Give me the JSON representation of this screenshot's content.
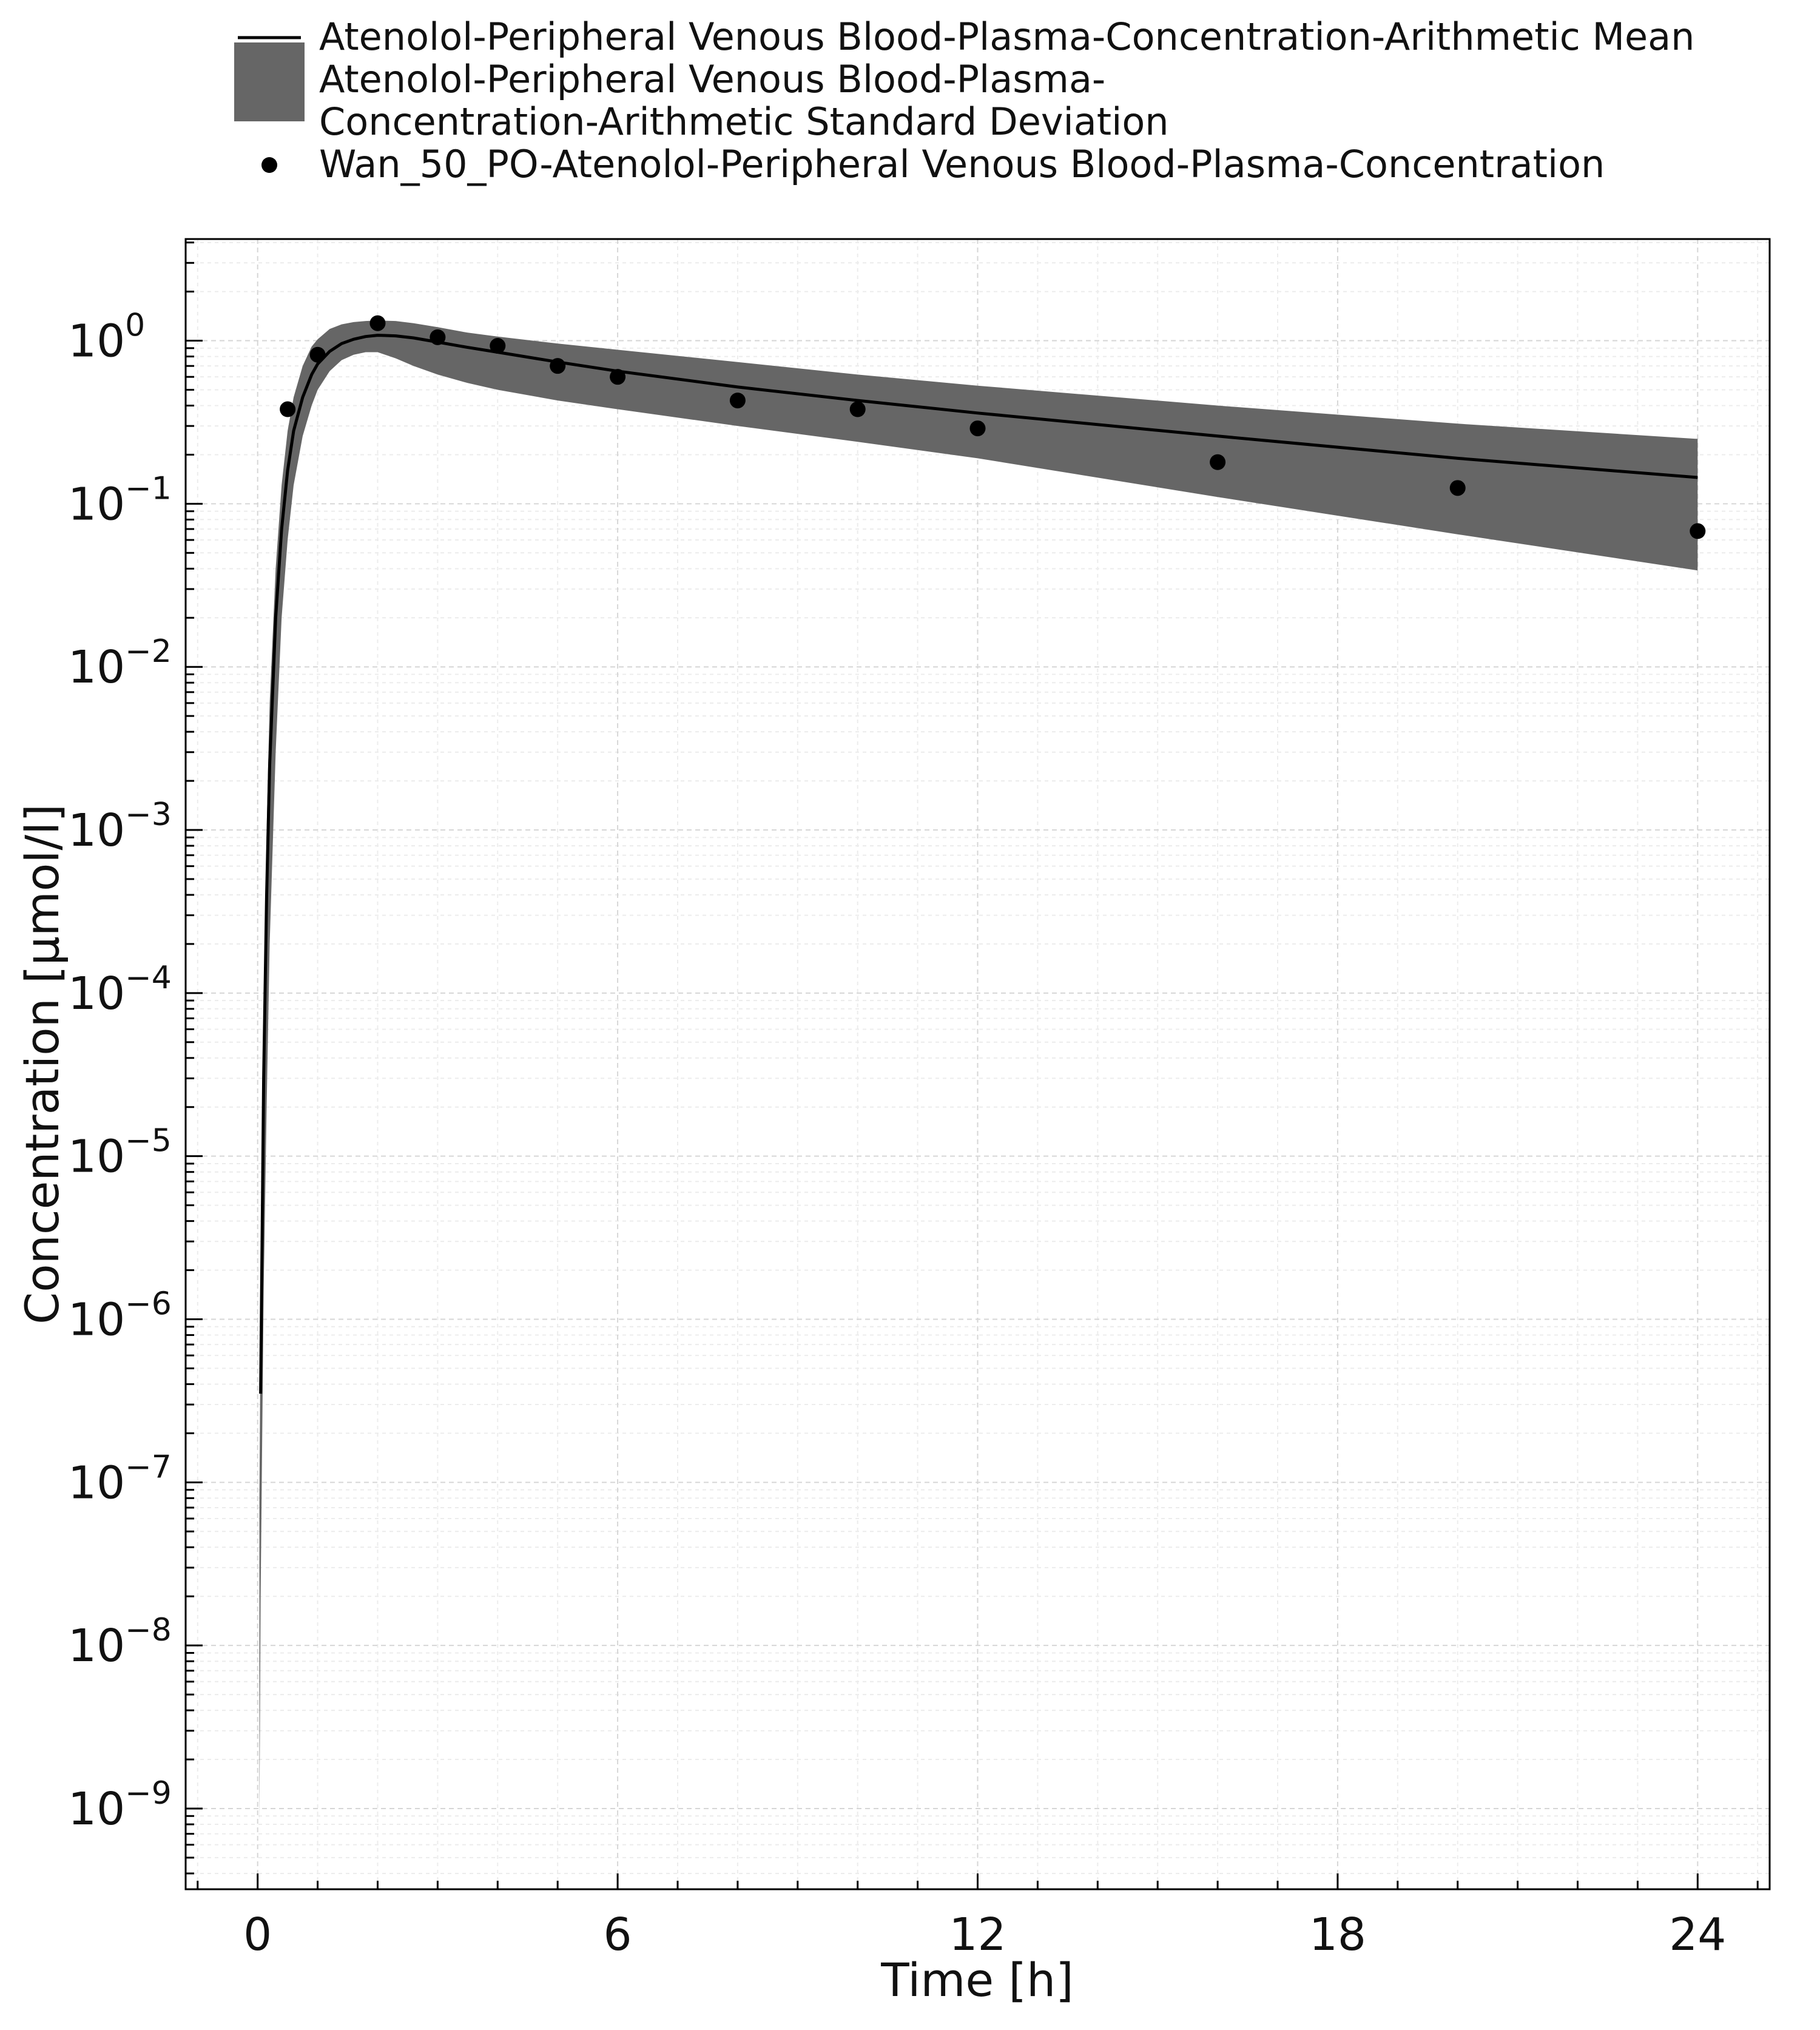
{
  "chart_data": {
    "type": "line",
    "xlabel": "Time [h]",
    "ylabel": "Concentration [µmol/l]",
    "y_scale": "log",
    "xlim": [
      -1.2,
      25.2
    ],
    "ylim": [
      3.2e-10,
      4.2
    ],
    "x_ticks": [
      {
        "value": 0,
        "label": "0"
      },
      {
        "value": 6,
        "label": "6"
      },
      {
        "value": 12,
        "label": "12"
      },
      {
        "value": 18,
        "label": "18"
      },
      {
        "value": 24,
        "label": "24"
      }
    ],
    "y_ticks": [
      {
        "value": 1,
        "base": "10",
        "exp": "0"
      },
      {
        "value": 0.1,
        "base": "10",
        "exp": "−1"
      },
      {
        "value": 0.01,
        "base": "10",
        "exp": "−2"
      },
      {
        "value": 0.001,
        "base": "10",
        "exp": "−3"
      },
      {
        "value": 0.0001,
        "base": "10",
        "exp": "−4"
      },
      {
        "value": 1e-05,
        "base": "10",
        "exp": "−5"
      },
      {
        "value": 1e-06,
        "base": "10",
        "exp": "−6"
      },
      {
        "value": 1e-07,
        "base": "10",
        "exp": "−7"
      },
      {
        "value": 1e-08,
        "base": "10",
        "exp": "−8"
      },
      {
        "value": 1e-09,
        "base": "10",
        "exp": "−9"
      }
    ],
    "grid": true,
    "legend": {
      "position": "top",
      "entries": [
        {
          "kind": "line",
          "lines": [
            "Atenolol-Peripheral Venous Blood-Plasma-Concentration-Arithmetic Mean"
          ]
        },
        {
          "kind": "band",
          "lines": [
            "Atenolol-Peripheral Venous Blood-Plasma-",
            "Concentration-Arithmetic Standard Deviation"
          ]
        },
        {
          "kind": "marker",
          "lines": [
            "Wan_50_PO-Atenolol-Peripheral Venous Blood-Plasma-Concentration"
          ]
        }
      ]
    },
    "series": [
      {
        "name": "Atenolol-Peripheral Venous Blood-Plasma-Concentration-Arithmetic Mean",
        "kind": "line",
        "color": "#000000",
        "x": [
          0.05,
          0.1,
          0.15,
          0.2,
          0.3,
          0.4,
          0.5,
          0.6,
          0.75,
          0.9,
          1.0,
          1.2,
          1.4,
          1.6,
          1.8,
          2.0,
          2.3,
          2.6,
          3.0,
          3.5,
          4.0,
          5.0,
          6.0,
          8.0,
          10.0,
          12.0,
          16.0,
          20.0,
          24.0
        ],
        "y": [
          3.5e-07,
          3e-05,
          0.0004,
          0.0025,
          0.02,
          0.07,
          0.16,
          0.28,
          0.45,
          0.62,
          0.72,
          0.86,
          0.96,
          1.02,
          1.06,
          1.08,
          1.07,
          1.04,
          0.98,
          0.91,
          0.85,
          0.74,
          0.65,
          0.52,
          0.43,
          0.36,
          0.26,
          0.19,
          0.145
        ]
      },
      {
        "name": "Atenolol-Peripheral Venous Blood-Plasma-Concentration-Arithmetic Standard Deviation",
        "kind": "band",
        "color": "#666666",
        "x": [
          0.03,
          0.05,
          0.1,
          0.15,
          0.2,
          0.3,
          0.4,
          0.5,
          0.6,
          0.75,
          0.9,
          1.0,
          1.2,
          1.4,
          1.6,
          1.8,
          2.0,
          2.3,
          2.6,
          3.0,
          3.5,
          4.0,
          5.0,
          6.0,
          8.0,
          10.0,
          12.0,
          16.0,
          20.0,
          24.0
        ],
        "upper": [
          8e-08,
          1e-06,
          8e-05,
          0.001,
          0.006,
          0.04,
          0.13,
          0.28,
          0.45,
          0.7,
          0.92,
          1.02,
          1.18,
          1.26,
          1.3,
          1.32,
          1.33,
          1.32,
          1.28,
          1.21,
          1.12,
          1.06,
          0.96,
          0.88,
          0.74,
          0.62,
          0.53,
          0.4,
          0.31,
          0.25
        ],
        "lower": [
          8e-10,
          2e-08,
          1.5e-06,
          2e-05,
          0.0002,
          0.003,
          0.02,
          0.06,
          0.13,
          0.26,
          0.4,
          0.5,
          0.65,
          0.76,
          0.82,
          0.85,
          0.85,
          0.78,
          0.7,
          0.62,
          0.55,
          0.5,
          0.43,
          0.38,
          0.3,
          0.24,
          0.19,
          0.11,
          0.065,
          0.039
        ]
      },
      {
        "name": "Wan_50_PO-Atenolol-Peripheral Venous Blood-Plasma-Concentration",
        "kind": "scatter",
        "color": "#000000",
        "x": [
          0.5,
          1.0,
          2.0,
          3.0,
          4.0,
          5.0,
          6.0,
          8.0,
          10.0,
          12.0,
          16.0,
          20.0,
          24.0
        ],
        "y": [
          0.38,
          0.82,
          1.28,
          1.05,
          0.93,
          0.7,
          0.6,
          0.43,
          0.38,
          0.29,
          0.18,
          0.125,
          0.068
        ]
      }
    ]
  }
}
